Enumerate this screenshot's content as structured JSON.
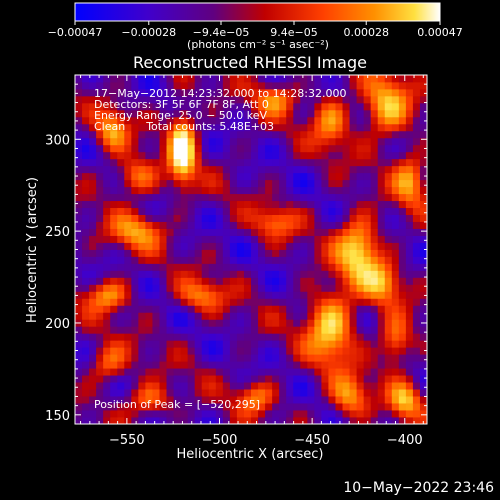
{
  "chart_data": {
    "type": "heatmap",
    "title": "Reconstructed RHESSI Image",
    "xlabel": "Heliocentric X (arcsec)",
    "ylabel": "Heliocentric Y (arcsec)",
    "xlim": [
      -578,
      -388
    ],
    "ylim": [
      145,
      335
    ],
    "x_ticks": [
      -550,
      -500,
      -450,
      -400
    ],
    "x_tick_labels": [
      "−550",
      "−500",
      "−450",
      "−400"
    ],
    "y_ticks": [
      150,
      200,
      250,
      300
    ],
    "y_tick_labels": [
      "150",
      "200",
      "250",
      "300"
    ],
    "colorbar": {
      "range": [
        -0.00047,
        0.00047
      ],
      "ticks": [
        -0.00047,
        -0.00028,
        -9.4e-05,
        9.4e-05,
        0.00028,
        0.00047
      ],
      "tick_labels": [
        "−0.00047",
        "−0.00028",
        "−9.4e−05",
        "9.4e−05",
        "0.00028",
        "0.00047"
      ],
      "unit_label": "(photons cm⁻² s⁻¹ asec⁻²)",
      "colormap": [
        "#0000ff",
        "#4000cc",
        "#600080",
        "#c00000",
        "#ff4000",
        "#ff9000",
        "#ffe040",
        "#ffffff"
      ]
    },
    "info_lines": [
      "17−May−2012 14:23:32.000 to 14:28:32.000",
      "Detectors: 3F 5F 6F 7F 8F, Att 0",
      "Energy Range: 25.0 − 50.0 keV",
      "Clean      Total counts: 5.48E+03"
    ],
    "peak_label": "Position of Peak = [−520,295]",
    "peak_position": [
      -520,
      295
    ],
    "peak_value": 0.00047,
    "sources": [
      {
        "x": -520,
        "y": 295,
        "amp": 1.0,
        "sx": 5,
        "sy": 14
      },
      {
        "x": -558,
        "y": 305,
        "amp": 0.6,
        "sx": 6,
        "sy": 8
      },
      {
        "x": -545,
        "y": 280,
        "amp": 0.55,
        "sx": 8,
        "sy": 7
      },
      {
        "x": -470,
        "y": 322,
        "amp": 0.5,
        "sx": 8,
        "sy": 6
      },
      {
        "x": -440,
        "y": 310,
        "amp": 0.55,
        "sx": 7,
        "sy": 10
      },
      {
        "x": -410,
        "y": 318,
        "amp": 0.7,
        "sx": 9,
        "sy": 12
      },
      {
        "x": -397,
        "y": 278,
        "amp": 0.6,
        "sx": 6,
        "sy": 10
      },
      {
        "x": -545,
        "y": 250,
        "amp": 0.55,
        "sx": 10,
        "sy": 7
      },
      {
        "x": -470,
        "y": 255,
        "amp": 0.45,
        "sx": 8,
        "sy": 6
      },
      {
        "x": -425,
        "y": 240,
        "amp": 0.85,
        "sx": 8,
        "sy": 12
      },
      {
        "x": -412,
        "y": 222,
        "amp": 0.6,
        "sx": 7,
        "sy": 8
      },
      {
        "x": -560,
        "y": 215,
        "amp": 0.6,
        "sx": 8,
        "sy": 6
      },
      {
        "x": -510,
        "y": 215,
        "amp": 0.5,
        "sx": 9,
        "sy": 6
      },
      {
        "x": -560,
        "y": 178,
        "amp": 0.5,
        "sx": 7,
        "sy": 7
      },
      {
        "x": -538,
        "y": 158,
        "amp": 0.55,
        "sx": 8,
        "sy": 6
      },
      {
        "x": -480,
        "y": 160,
        "amp": 0.5,
        "sx": 7,
        "sy": 6
      },
      {
        "x": -440,
        "y": 198,
        "amp": 0.8,
        "sx": 9,
        "sy": 14
      },
      {
        "x": -405,
        "y": 190,
        "amp": 0.6,
        "sx": 6,
        "sy": 9
      },
      {
        "x": -430,
        "y": 160,
        "amp": 0.6,
        "sx": 7,
        "sy": 8
      },
      {
        "x": -400,
        "y": 158,
        "amp": 0.65,
        "sx": 6,
        "sy": 7
      }
    ]
  },
  "timestamp": "10−May−2022 23:46"
}
